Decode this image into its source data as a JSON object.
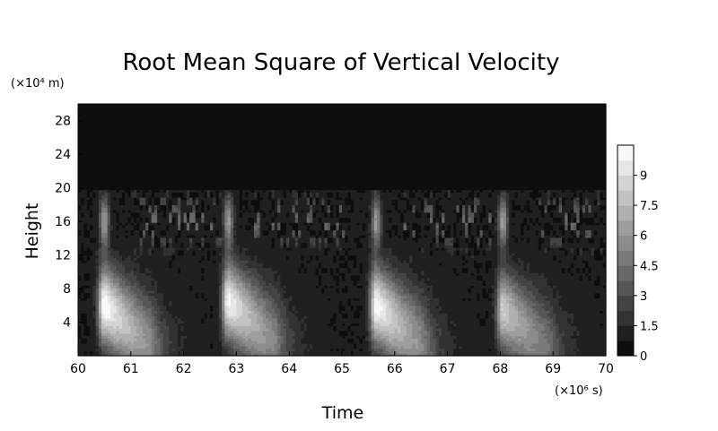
{
  "chart_data": {
    "type": "heatmap",
    "title": "Root Mean Square of Vertical Velocity",
    "xlabel": "Time",
    "ylabel": "Height",
    "x_unit_label": "(×10⁶ s)",
    "y_unit_label": "(×10⁴ m)",
    "xlim": [
      60,
      70
    ],
    "ylim": [
      0,
      30
    ],
    "x_ticks": [
      "60",
      "61",
      "62",
      "63",
      "64",
      "65",
      "66",
      "67",
      "68",
      "69",
      "70"
    ],
    "y_ticks": [
      "4",
      "8",
      "12",
      "16",
      "20",
      "24",
      "28"
    ],
    "colorbar": {
      "ticks": [
        "0",
        "1.5",
        "3",
        "4.5",
        "6",
        "7.5",
        "9"
      ],
      "range": [
        0,
        10.5
      ],
      "levels": 14,
      "colormap": "grayscale"
    },
    "features": {
      "active_layer_top": 19.8,
      "bursts": [
        {
          "time": 60.5,
          "peak_height": 6.0,
          "peak_value": 9.8
        },
        {
          "time": 62.85,
          "peak_height": 6.5,
          "peak_value": 9.3
        },
        {
          "time": 65.65,
          "peak_height": 6.0,
          "peak_value": 9.6
        },
        {
          "time": 68.05,
          "peak_height": 5.5,
          "peak_value": 7.6
        }
      ]
    }
  }
}
